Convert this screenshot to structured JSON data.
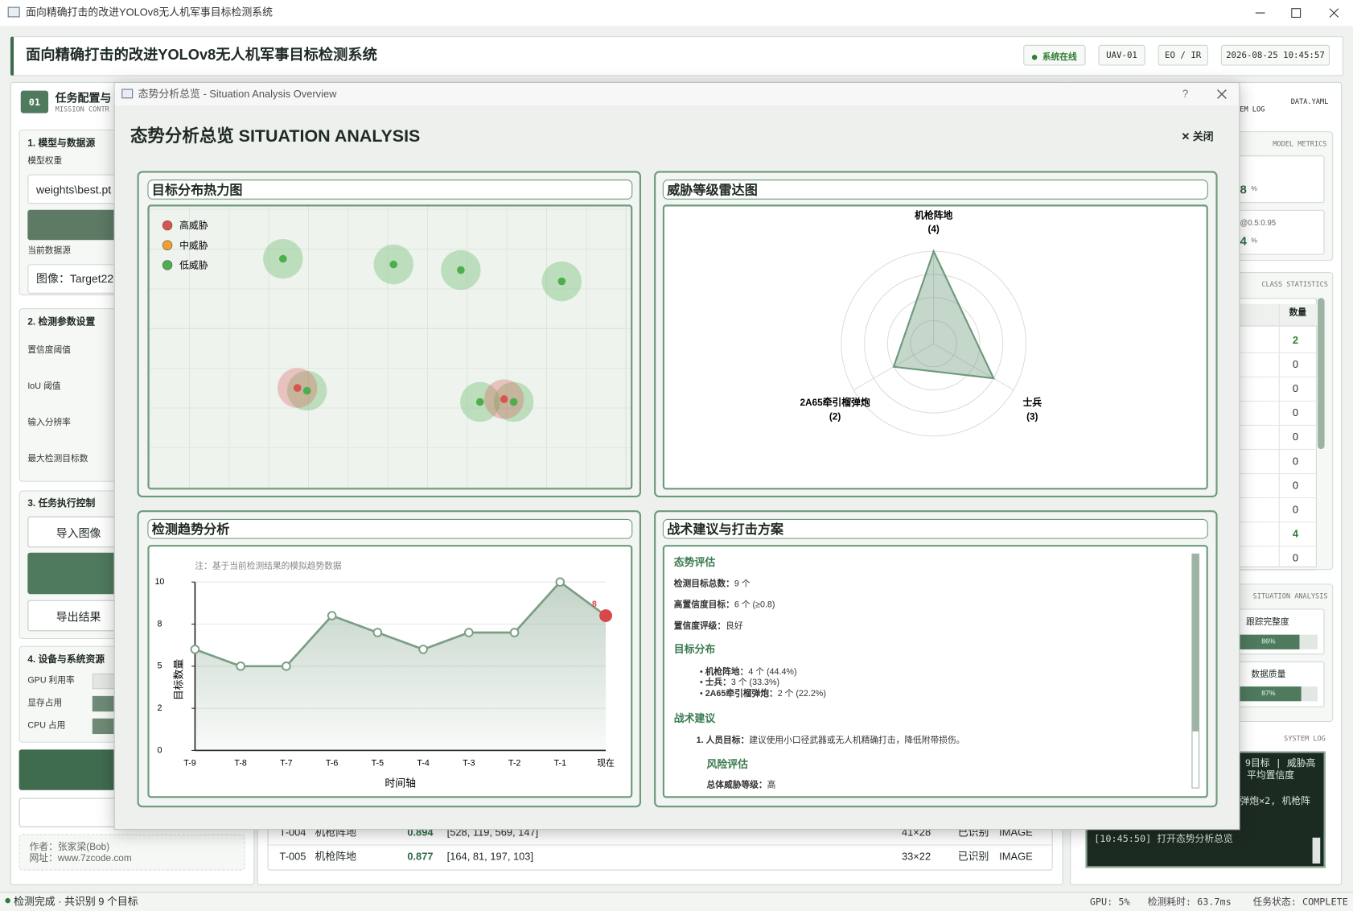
{
  "window": {
    "title": "面向精确打击的改进YOLOv8无人机军事目标检测系统"
  },
  "header": {
    "title": "面向精确打击的改进YOLOv8无人机军事目标检测系统",
    "status": "● 系统在线",
    "uav": "UAV-01",
    "sensor": "EO / IR",
    "time": "2026-08-25 10:45:57"
  },
  "left_panel": {
    "index": "01",
    "title": "任务配置与",
    "subtitle": "MISSION CONTR",
    "model_section": {
      "title": "1. 模型与数据源",
      "weights_label": "模型权重",
      "weights": "weights\\best.pt",
      "source_label": "当前数据源",
      "source": "图像：Target22."
    },
    "params_section": {
      "title": "2. 检测参数设置",
      "labels": [
        "置信度阈值",
        "IoU 阈值",
        "输入分辨率",
        "最大检测目标数"
      ]
    },
    "control_section": {
      "title": "3. 任务执行控制",
      "import": "导入图像",
      "export": "导出结果"
    },
    "resource_section": {
      "title": "4. 设备与系统资源",
      "labels": [
        "GPU 利用率",
        "显存占用",
        "CPU 占用"
      ]
    },
    "footer": {
      "author": "作者：张家梁(Bob)",
      "website": "网址：www.7zcode.com"
    }
  },
  "right_panel": {
    "tab": "DATA.YAML",
    "log_tab": "TEM LOG",
    "metrics_title": "MODEL METRICS",
    "metrics": [
      {
        "value": "8",
        "unit": "%"
      },
      {
        "label": "@0.5:0.95",
        "value": "4",
        "unit": "%"
      }
    ],
    "class_title": "CLASS STATISTICS",
    "count_header": "数量",
    "counts": [
      "2",
      "0",
      "0",
      "0",
      "0",
      "0",
      "0",
      "0",
      "4",
      "0"
    ],
    "situation_title": "SITUATION ANALYSIS",
    "indicators": [
      {
        "label": "跟踪完整度",
        "value": 86,
        "value_label": "86%"
      },
      {
        "label": "数据质量",
        "value": 87,
        "value_label": "87%"
      }
    ],
    "log_title": "SYSTEM LOG",
    "log": [
      "9目标 | 威胁高",
      "平均置信度",
      "弹炮×2, 机枪阵",
      "[10:45:50]  打开态势分析总览"
    ]
  },
  "table": {
    "rows": [
      [
        "T-004",
        "机枪阵地",
        "0.894",
        "[528, 119, 569, 147]",
        "41×28",
        "已识别",
        "IMAGE"
      ],
      [
        "T-005",
        "机枪阵地",
        "0.877",
        "[164, 81, 197, 103]",
        "33×22",
        "已识别",
        "IMAGE"
      ]
    ]
  },
  "status_bar": {
    "message": "检测完成 · 共识别 9 个目标",
    "gpu": "GPU: 5%",
    "latency": "检测耗时: 63.7ms",
    "task": "任务状态: COMPLETE"
  },
  "dialog": {
    "window_title": "态势分析总览 - Situation Analysis Overview",
    "help": "?",
    "title": "态势分析总览 SITUATION ANALYSIS",
    "close": "✕ 关闭",
    "heatmap": {
      "type": "scatter",
      "title": "目标分布热力图",
      "xlim": [
        0,
        1
      ],
      "ylim": [
        1,
        0
      ],
      "series": [
        {
          "name": "高威胁",
          "color": "#d9534f",
          "x": [
            0.31,
            0.74
          ],
          "y": [
            0.65,
            0.69
          ]
        },
        {
          "name": "中威胁",
          "color": "#f0a030",
          "x": [],
          "y": []
        },
        {
          "name": "低威胁",
          "color": "#4cae4c",
          "x": [
            0.28,
            0.51,
            0.65,
            0.86,
            0.33,
            0.69,
            0.76
          ],
          "y": [
            0.19,
            0.21,
            0.23,
            0.27,
            0.66,
            0.7,
            0.7
          ]
        }
      ]
    },
    "radar": {
      "type": "radar",
      "title": "威胁等级雷达图",
      "categories": [
        "机枪阵地",
        "士兵",
        "2A65牵引榴弹炮"
      ],
      "values": [
        4,
        3,
        2
      ],
      "value_labels": [
        "(4)",
        "(3)",
        "(2)"
      ],
      "rlim": [
        0,
        4
      ],
      "rticks": [
        1,
        2,
        3,
        4
      ],
      "color": "#6d9a7a"
    },
    "trend": {
      "type": "line",
      "title": "检测趋势分析",
      "note": "注：基于当前检测结果的模拟趋势数据",
      "x_label": "时间轴",
      "y_label": "目标数量",
      "categories": [
        "T-9",
        "T-8",
        "T-7",
        "T-6",
        "T-5",
        "T-4",
        "T-3",
        "T-2",
        "T-1",
        "现在"
      ],
      "values": [
        6,
        5,
        5,
        8,
        7,
        6,
        7,
        7,
        10,
        8
      ],
      "ylim": [
        0,
        10
      ],
      "yticks": [
        0,
        {
          "value": 2.5,
          "label": "2"
        },
        5,
        {
          "value": 7.5,
          "label": "8"
        },
        10
      ],
      "color": "#7a9e84",
      "highlight_color": "#d94848",
      "grid": true
    },
    "tactics": {
      "title": "战术建议与打击方案",
      "assessment": {
        "heading": "态势评估",
        "items": [
          {
            "label": "检测目标总数：",
            "value": "9 个"
          },
          {
            "label": "高置信度目标：",
            "value": "6 个 (≥0.8)"
          },
          {
            "label": "置信度评级：",
            "value": "良好"
          }
        ]
      },
      "distribution": {
        "heading": "目标分布",
        "items": [
          {
            "label": "机枪阵地：",
            "value": "4 个 (44.4%)"
          },
          {
            "label": "士兵：",
            "value": "3 个 (33.3%)"
          },
          {
            "label": "2A65牵引榴弹炮：",
            "value": "2 个 (22.2%)"
          }
        ]
      },
      "advice": {
        "heading": "战术建议",
        "items": [
          {
            "label": "1. 人员目标：",
            "value": "建议使用小口径武器或无人机精确打击，降低附带损伤。"
          }
        ]
      },
      "risk": {
        "heading": "风险评估",
        "items": [
          {
            "label": "总体威胁等级：",
            "value": "高"
          }
        ]
      }
    }
  }
}
